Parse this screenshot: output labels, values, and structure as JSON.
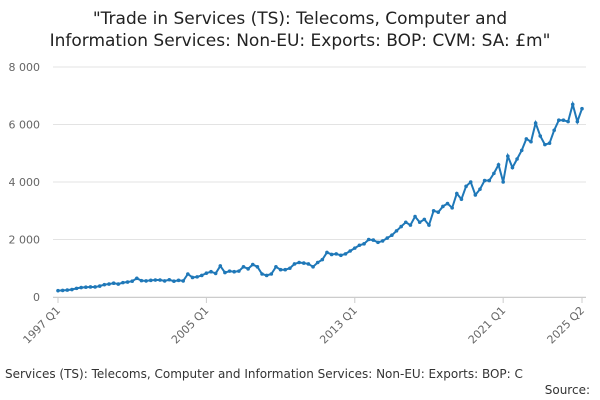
{
  "chart_data": {
    "type": "line",
    "title_lines": [
      "\"Trade in Services (TS): Telecoms, Computer and",
      "Information Services: Non-EU: Exports: BOP: CVM: SA: £m\""
    ],
    "caption": "Services (TS): Telecoms, Computer and Information Services: Non-EU: Exports: BOP: C",
    "source": "Source:",
    "categories": [
      "1997 Q1",
      null,
      null,
      null,
      null,
      null,
      null,
      null,
      null,
      null,
      null,
      null,
      null,
      null,
      null,
      null,
      null,
      null,
      null,
      null,
      null,
      null,
      null,
      null,
      null,
      null,
      null,
      null,
      null,
      null,
      null,
      null,
      "2005 Q1",
      null,
      null,
      null,
      null,
      null,
      null,
      null,
      null,
      null,
      null,
      null,
      null,
      null,
      null,
      null,
      null,
      null,
      null,
      null,
      null,
      null,
      null,
      null,
      null,
      null,
      null,
      null,
      null,
      null,
      null,
      null,
      "2013 Q1",
      null,
      null,
      null,
      null,
      null,
      null,
      null,
      null,
      null,
      null,
      null,
      null,
      null,
      null,
      null,
      null,
      null,
      null,
      null,
      null,
      null,
      null,
      null,
      null,
      null,
      null,
      null,
      null,
      null,
      null,
      null,
      "2021 Q1",
      null,
      null,
      null,
      null,
      null,
      null,
      null,
      null,
      null,
      null,
      null,
      null,
      null,
      null,
      null,
      null,
      "2025 Q2"
    ],
    "series": [
      {
        "name": "Exports",
        "color": "#1f78b8",
        "values": [
          220,
          230,
          240,
          260,
          300,
          330,
          340,
          350,
          350,
          380,
          430,
          450,
          480,
          450,
          500,
          520,
          550,
          650,
          570,
          560,
          580,
          590,
          590,
          560,
          600,
          550,
          580,
          560,
          800,
          680,
          700,
          750,
          830,
          880,
          820,
          1080,
          850,
          900,
          880,
          900,
          1050,
          980,
          1130,
          1050,
          800,
          750,
          800,
          1050,
          950,
          950,
          1000,
          1150,
          1200,
          1180,
          1150,
          1050,
          1200,
          1300,
          1550,
          1480,
          1500,
          1450,
          1500,
          1600,
          1700,
          1800,
          1850,
          2000,
          1980,
          1900,
          1950,
          2050,
          2150,
          2300,
          2450,
          2600,
          2500,
          2800,
          2600,
          2700,
          2500,
          3000,
          2950,
          3150,
          3250,
          3100,
          3600,
          3400,
          3850,
          4000,
          3550,
          3750,
          4050,
          4050,
          4300,
          4600,
          4000,
          4900,
          4500,
          4800,
          5100,
          5500,
          5400,
          6050,
          5600,
          5300,
          5350,
          5800,
          6150,
          6150,
          6100,
          6700,
          6100,
          6550
        ]
      }
    ],
    "ylim": [
      0,
      8000
    ],
    "yticks": [
      0,
      {
        "value": 2000,
        "label": "2 000"
      },
      {
        "value": 4000,
        "label": "4 000"
      },
      {
        "value": 6000,
        "label": "6 000"
      },
      {
        "value": 8000,
        "label": "8 000"
      }
    ],
    "grid": true
  }
}
